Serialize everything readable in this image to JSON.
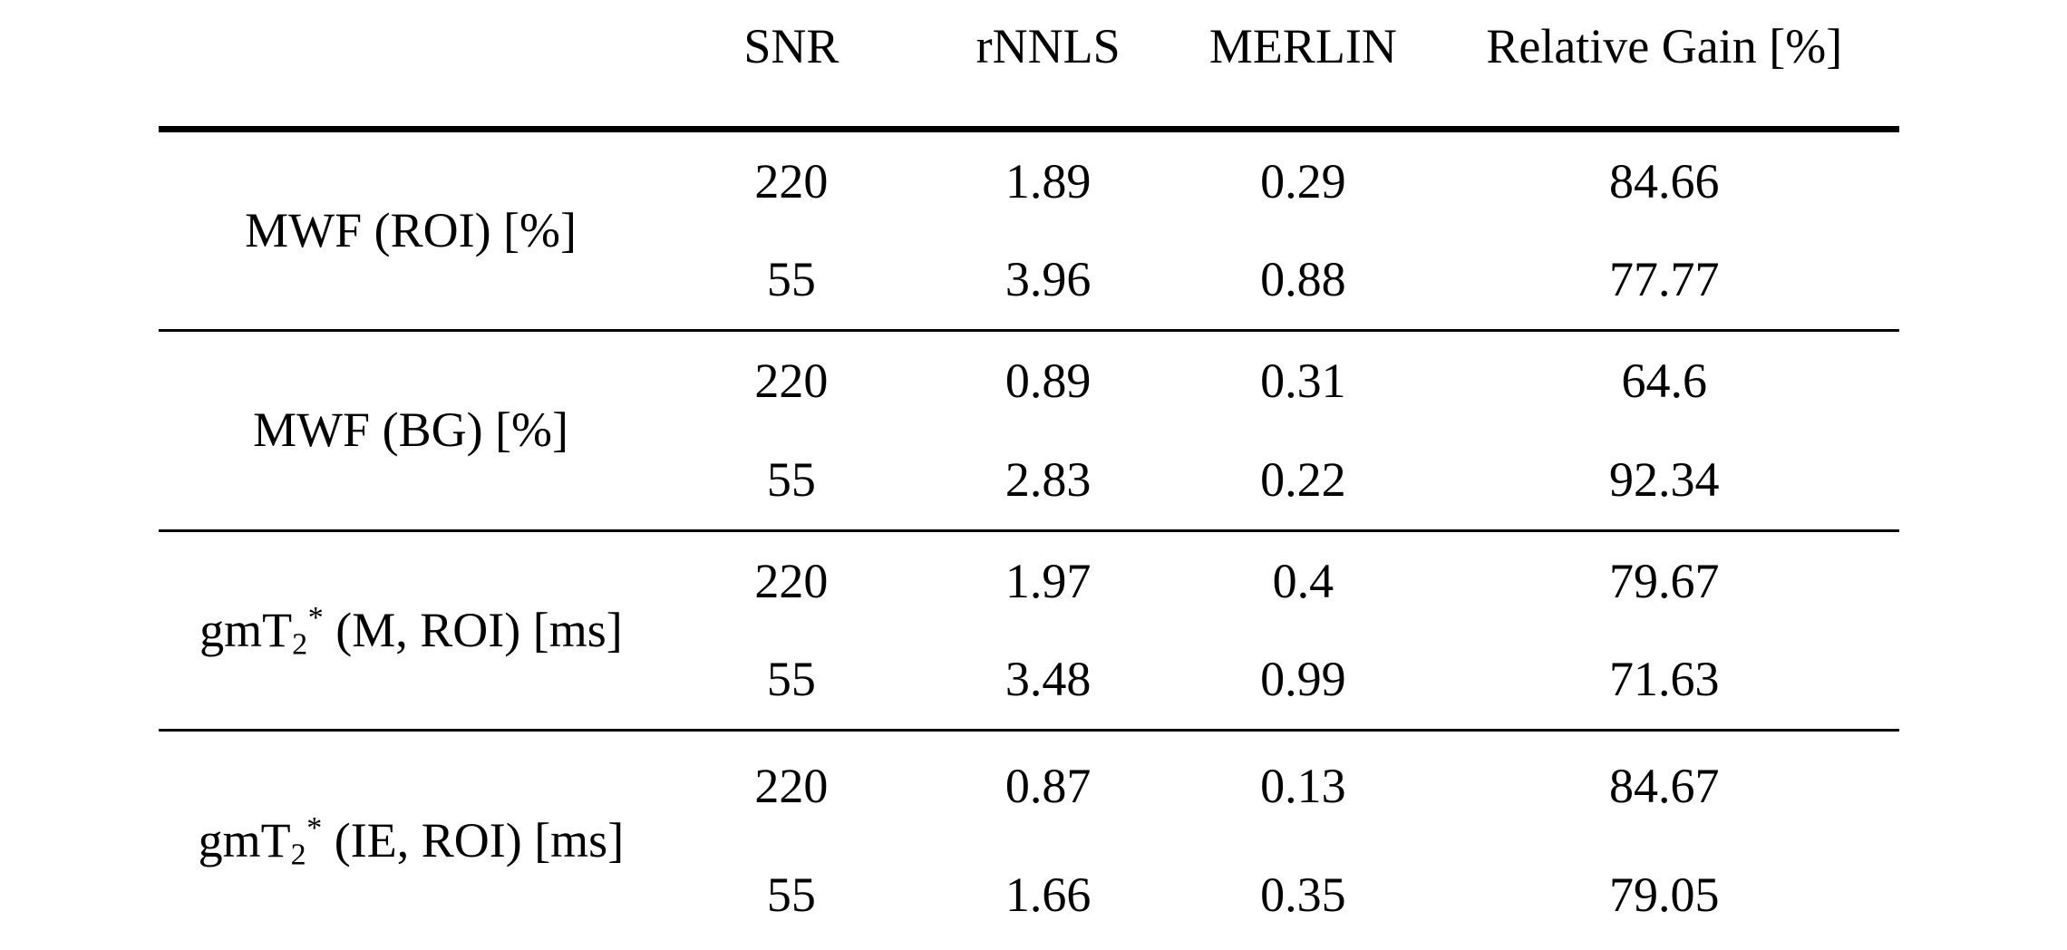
{
  "colors": {
    "background": "#ffffff",
    "text": "#000000",
    "rules": "#000000"
  },
  "table": {
    "columns": [
      "",
      "SNR",
      "rNNLS",
      "MERLIN",
      "Relative Gain [%]"
    ],
    "groups": [
      {
        "label": {
          "prefix": "MWF (ROI) [%]",
          "sub": "",
          "sup": "",
          "suffix": ""
        },
        "rows": [
          {
            "snr": "220",
            "rnnls": "1.89",
            "merlin": "0.29",
            "gain": "84.66"
          },
          {
            "snr": "55",
            "rnnls": "3.96",
            "merlin": "0.88",
            "gain": "77.77"
          }
        ]
      },
      {
        "label": {
          "prefix": "MWF (BG) [%]",
          "sub": "",
          "sup": "",
          "suffix": ""
        },
        "rows": [
          {
            "snr": "220",
            "rnnls": "0.89",
            "merlin": "0.31",
            "gain": "64.6"
          },
          {
            "snr": "55",
            "rnnls": "2.83",
            "merlin": "0.22",
            "gain": "92.34"
          }
        ]
      },
      {
        "label": {
          "prefix": "gmT",
          "sub": "2",
          "sup": "*",
          "suffix": " (M, ROI) [ms]"
        },
        "rows": [
          {
            "snr": "220",
            "rnnls": "1.97",
            "merlin": "0.4",
            "gain": "79.67"
          },
          {
            "snr": "55",
            "rnnls": "3.48",
            "merlin": "0.99",
            "gain": "71.63"
          }
        ]
      },
      {
        "label": {
          "prefix": "gmT",
          "sub": "2",
          "sup": "*",
          "suffix": " (IE, ROI) [ms]"
        },
        "rows": [
          {
            "snr": "220",
            "rnnls": "0.87",
            "merlin": "0.13",
            "gain": "84.67"
          },
          {
            "snr": "55",
            "rnnls": "1.66",
            "merlin": "0.35",
            "gain": "79.05"
          }
        ]
      }
    ]
  }
}
